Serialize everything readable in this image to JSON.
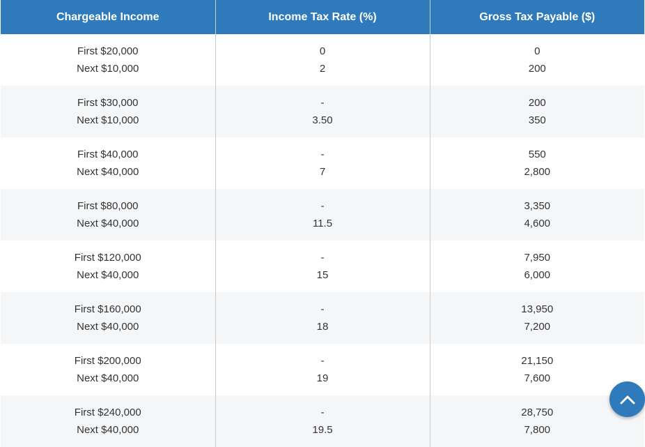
{
  "table": {
    "headers": [
      "Chargeable Income",
      "Income Tax Rate (%)",
      "Gross Tax Payable ($)"
    ],
    "rows": [
      {
        "income": [
          "First $20,000",
          "Next $10,000"
        ],
        "rate": [
          "0",
          "2"
        ],
        "tax": [
          "0",
          "200"
        ]
      },
      {
        "income": [
          "First $30,000",
          "Next $10,000"
        ],
        "rate": [
          "-",
          "3.50"
        ],
        "tax": [
          "200",
          "350"
        ]
      },
      {
        "income": [
          "First $40,000",
          "Next $40,000"
        ],
        "rate": [
          "-",
          "7"
        ],
        "tax": [
          "550",
          "2,800"
        ]
      },
      {
        "income": [
          "First $80,000",
          "Next $40,000"
        ],
        "rate": [
          "-",
          "11.5"
        ],
        "tax": [
          "3,350",
          "4,600"
        ]
      },
      {
        "income": [
          "First $120,000",
          "Next $40,000"
        ],
        "rate": [
          "-",
          "15"
        ],
        "tax": [
          "7,950",
          "6,000"
        ]
      },
      {
        "income": [
          "First $160,000",
          "Next $40,000"
        ],
        "rate": [
          "-",
          "18"
        ],
        "tax": [
          "13,950",
          "7,200"
        ]
      },
      {
        "income": [
          "First $200,000",
          "Next $40,000"
        ],
        "rate": [
          "-",
          "19"
        ],
        "tax": [
          "21,150",
          "7,600"
        ]
      },
      {
        "income": [
          "First $240,000",
          "Next $40,000"
        ],
        "rate": [
          "-",
          "19.5"
        ],
        "tax": [
          "28,750",
          "7,800"
        ]
      }
    ]
  },
  "scroll_top": {
    "icon": "chevron-up-icon"
  },
  "colors": {
    "header_bg": "#2e7aba",
    "alt_row_bg": "#f5f6f8"
  }
}
